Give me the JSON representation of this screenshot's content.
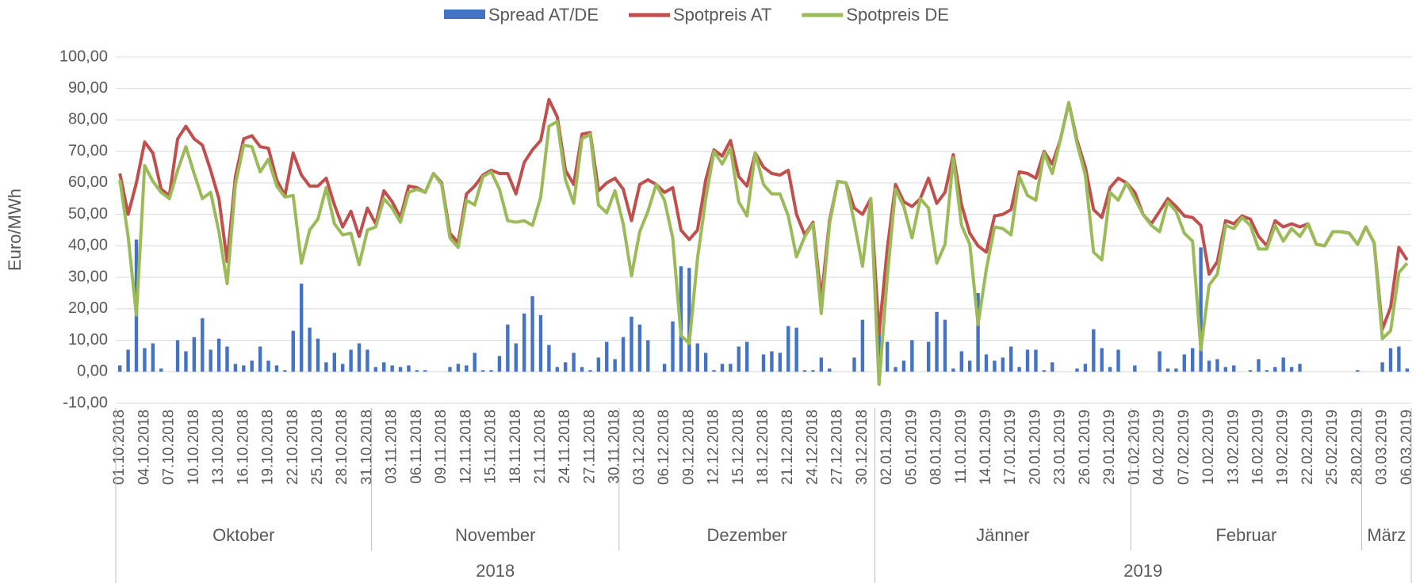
{
  "chart_data": {
    "type": "combo",
    "y_label": "Euro/MWh",
    "ylim": [
      -10,
      100
    ],
    "yticks": [
      {
        "value": -10,
        "label": "-10,00"
      },
      {
        "value": 0,
        "label": "0,00"
      },
      {
        "value": 10,
        "label": "10,00"
      },
      {
        "value": 20,
        "label": "20,00"
      },
      {
        "value": 30,
        "label": "30,00"
      },
      {
        "value": 40,
        "label": "40,00"
      },
      {
        "value": 50,
        "label": "50,00"
      },
      {
        "value": 60,
        "label": "60,00"
      },
      {
        "value": 70,
        "label": "70,00"
      },
      {
        "value": 80,
        "label": "80,00"
      },
      {
        "value": 90,
        "label": "90,00"
      },
      {
        "value": 100,
        "label": "100,00"
      }
    ],
    "grid": true,
    "legend": "top",
    "months": [
      "Oktober",
      "November",
      "Dezember",
      "Jänner",
      "Februar",
      "März"
    ],
    "years": [
      "2018",
      "2019"
    ],
    "categories": [
      "01.10.2018",
      null,
      null,
      "04.10.2018",
      null,
      null,
      "07.10.2018",
      null,
      null,
      "10.10.2018",
      null,
      null,
      "13.10.2018",
      null,
      null,
      "16.10.2018",
      null,
      null,
      "19.10.2018",
      null,
      null,
      "22.10.2018",
      null,
      null,
      "25.10.2018",
      null,
      null,
      "28.10.2018",
      null,
      null,
      "31.10.2018",
      null,
      null,
      "03.11.2018",
      null,
      null,
      "06.11.2018",
      null,
      null,
      "09.11.2018",
      null,
      null,
      "12.11.2018",
      null,
      null,
      "15.11.2018",
      null,
      null,
      "18.11.2018",
      null,
      null,
      "21.11.2018",
      null,
      null,
      "24.11.2018",
      null,
      null,
      "27.11.2018",
      null,
      null,
      "30.11.2018",
      null,
      null,
      "03.12.2018",
      null,
      null,
      "06.12.2018",
      null,
      null,
      "09.12.2018",
      null,
      null,
      "12.12.2018",
      null,
      null,
      "15.12.2018",
      null,
      null,
      "18.12.2018",
      null,
      null,
      "21.12.2018",
      null,
      null,
      "24.12.2018",
      null,
      null,
      "27.12.2018",
      null,
      null,
      "30.12.2018",
      null,
      null,
      "02.01.2019",
      null,
      null,
      "05.01.2019",
      null,
      null,
      "08.01.2019",
      null,
      null,
      "11.01.2019",
      null,
      null,
      "14.01.2019",
      null,
      null,
      "17.01.2019",
      null,
      null,
      "20.01.2019",
      null,
      null,
      "23.01.2019",
      null,
      null,
      "26.01.2019",
      null,
      null,
      "29.01.2019",
      null,
      null,
      "01.02.2019",
      null,
      null,
      "04.02.2019",
      null,
      null,
      "07.02.2019",
      null,
      null,
      "10.02.2019",
      null,
      null,
      "13.02.2019",
      null,
      null,
      "16.02.2019",
      null,
      null,
      "19.02.2019",
      null,
      null,
      "22.02.2019",
      null,
      null,
      "25.02.2019",
      null,
      null,
      "28.02.2019",
      null,
      null,
      "03.03.2019",
      null,
      null,
      "06.03.2019"
    ],
    "series": [
      {
        "name": "Spread AT/DE",
        "kind": "bar",
        "color": "#4472c4",
        "values": [
          2,
          7,
          42,
          7.5,
          9,
          1,
          0,
          10,
          6.5,
          11,
          17,
          7,
          10.5,
          8,
          2.5,
          2,
          3.5,
          8,
          3.5,
          2,
          0.5,
          13,
          28,
          14,
          10.5,
          3,
          6,
          2.5,
          7,
          9,
          7,
          1.5,
          3,
          2,
          1.5,
          2,
          0.5,
          0.5,
          0,
          0,
          1.5,
          2.5,
          2,
          6,
          0.5,
          0.5,
          5,
          15,
          9,
          18.5,
          24,
          18,
          8.5,
          1.5,
          3,
          6,
          1.5,
          0.5,
          4.5,
          9.5,
          4,
          11,
          17.5,
          15,
          10,
          0,
          2.5,
          16,
          33.5,
          33,
          9,
          6,
          0.5,
          2.5,
          2.5,
          8,
          9.5,
          0,
          5.5,
          6.5,
          6,
          14.5,
          14,
          0.5,
          0.5,
          4.5,
          1,
          0,
          0,
          4.5,
          16.5,
          0,
          16,
          9.5,
          1.5,
          3.5,
          10,
          0,
          9.5,
          19,
          16.5,
          1,
          6.5,
          3.5,
          25,
          5.5,
          3.5,
          4.5,
          8,
          1.5,
          7,
          7,
          0.5,
          3,
          0,
          0,
          1,
          2.5,
          13.5,
          7.5,
          1.5,
          7,
          0,
          2,
          0,
          0,
          6.5,
          1,
          1,
          5.5,
          7.5,
          39.5,
          3.5,
          4,
          1.5,
          2,
          0,
          0.5,
          4,
          0.5,
          1.5,
          4.5,
          1.5,
          2.5,
          0,
          0,
          0,
          0,
          0,
          0,
          0.5,
          0,
          0,
          3,
          7.5,
          8,
          1
        ]
      },
      {
        "name": "Spotpreis AT",
        "kind": "line",
        "color": "#c0504d",
        "values": [
          63,
          50,
          60,
          73,
          69.5,
          58,
          56,
          74,
          78,
          74,
          72,
          64,
          55,
          35,
          62,
          74,
          75,
          71.5,
          71,
          61,
          56,
          69.5,
          62.5,
          59,
          59,
          61.5,
          53,
          46,
          51,
          43,
          52,
          47,
          57.5,
          54,
          49,
          59,
          58.5,
          57,
          63,
          60,
          44,
          41,
          56.5,
          59,
          62.5,
          64,
          63,
          63,
          56.5,
          66.5,
          70.5,
          73.5,
          86.5,
          81,
          64,
          59.5,
          75.5,
          76,
          57.5,
          60,
          61.5,
          58,
          48,
          59.5,
          61,
          59.5,
          57,
          58.5,
          45,
          42,
          45,
          61,
          70.5,
          68.5,
          73.5,
          62,
          59,
          69.5,
          65,
          63,
          62.5,
          64,
          50,
          43.5,
          47.5,
          23,
          48,
          60.5,
          60,
          52,
          50,
          55,
          12,
          39,
          59.5,
          54,
          52.5,
          55,
          61.5,
          53.5,
          57,
          69,
          53,
          44,
          40,
          38,
          49.5,
          50,
          51.5,
          63.5,
          63,
          61.5,
          70,
          66,
          74,
          85.5,
          73.5,
          65,
          51.5,
          49,
          58.5,
          61.5,
          60,
          57,
          50,
          47,
          51,
          55,
          52.5,
          49.5,
          49,
          46.5,
          31,
          35,
          48,
          47,
          49.5,
          48.5,
          43,
          40,
          48,
          46,
          47,
          46,
          47,
          40.5,
          40,
          44.5,
          44.5,
          44,
          40.5,
          46,
          41,
          13.5,
          20.5,
          39.5,
          35.5
        ]
      },
      {
        "name": "Spotpreis DE",
        "kind": "line",
        "color": "#9bbb59",
        "values": [
          61,
          43,
          18,
          65.5,
          60.5,
          57,
          55,
          64,
          71.5,
          63,
          55,
          57,
          44.5,
          28,
          59.5,
          72,
          71.5,
          63.5,
          67.5,
          59,
          55.5,
          56,
          34.5,
          45,
          48.5,
          58.5,
          47,
          43.5,
          44,
          34,
          45,
          46,
          55,
          52,
          47.5,
          57,
          58,
          57,
          63,
          59.5,
          42.5,
          39.5,
          54.5,
          53,
          62,
          63.5,
          58,
          48,
          47.5,
          48,
          46.5,
          55.5,
          78,
          79.5,
          61,
          53.5,
          74,
          75.5,
          53,
          50.5,
          57.5,
          47,
          30.5,
          44.5,
          51,
          59.5,
          54.5,
          42.5,
          11.5,
          9,
          36,
          55,
          70,
          66,
          71,
          54,
          49.5,
          69.5,
          59.5,
          56.5,
          56.5,
          49.5,
          36.5,
          43,
          47,
          18.5,
          47,
          60.5,
          60,
          47.5,
          33.5,
          55,
          -4,
          30,
          58,
          52.5,
          42.5,
          55,
          52,
          34.5,
          40.5,
          68,
          46.5,
          40.5,
          15,
          32.5,
          46,
          45.5,
          43.5,
          62,
          56,
          54.5,
          69.5,
          63,
          74,
          85.5,
          72.5,
          62.5,
          38,
          35.5,
          57,
          54.5,
          60,
          55,
          50,
          46.5,
          44.5,
          54,
          51,
          44,
          41.5,
          7,
          27.5,
          31,
          46.5,
          45.5,
          49,
          46.5,
          39,
          39,
          46.5,
          41.5,
          45.5,
          43,
          47,
          40.5,
          40,
          44.5,
          44.5,
          44,
          40.5,
          46,
          41,
          10.5,
          13,
          31.5,
          34.5
        ]
      }
    ]
  }
}
